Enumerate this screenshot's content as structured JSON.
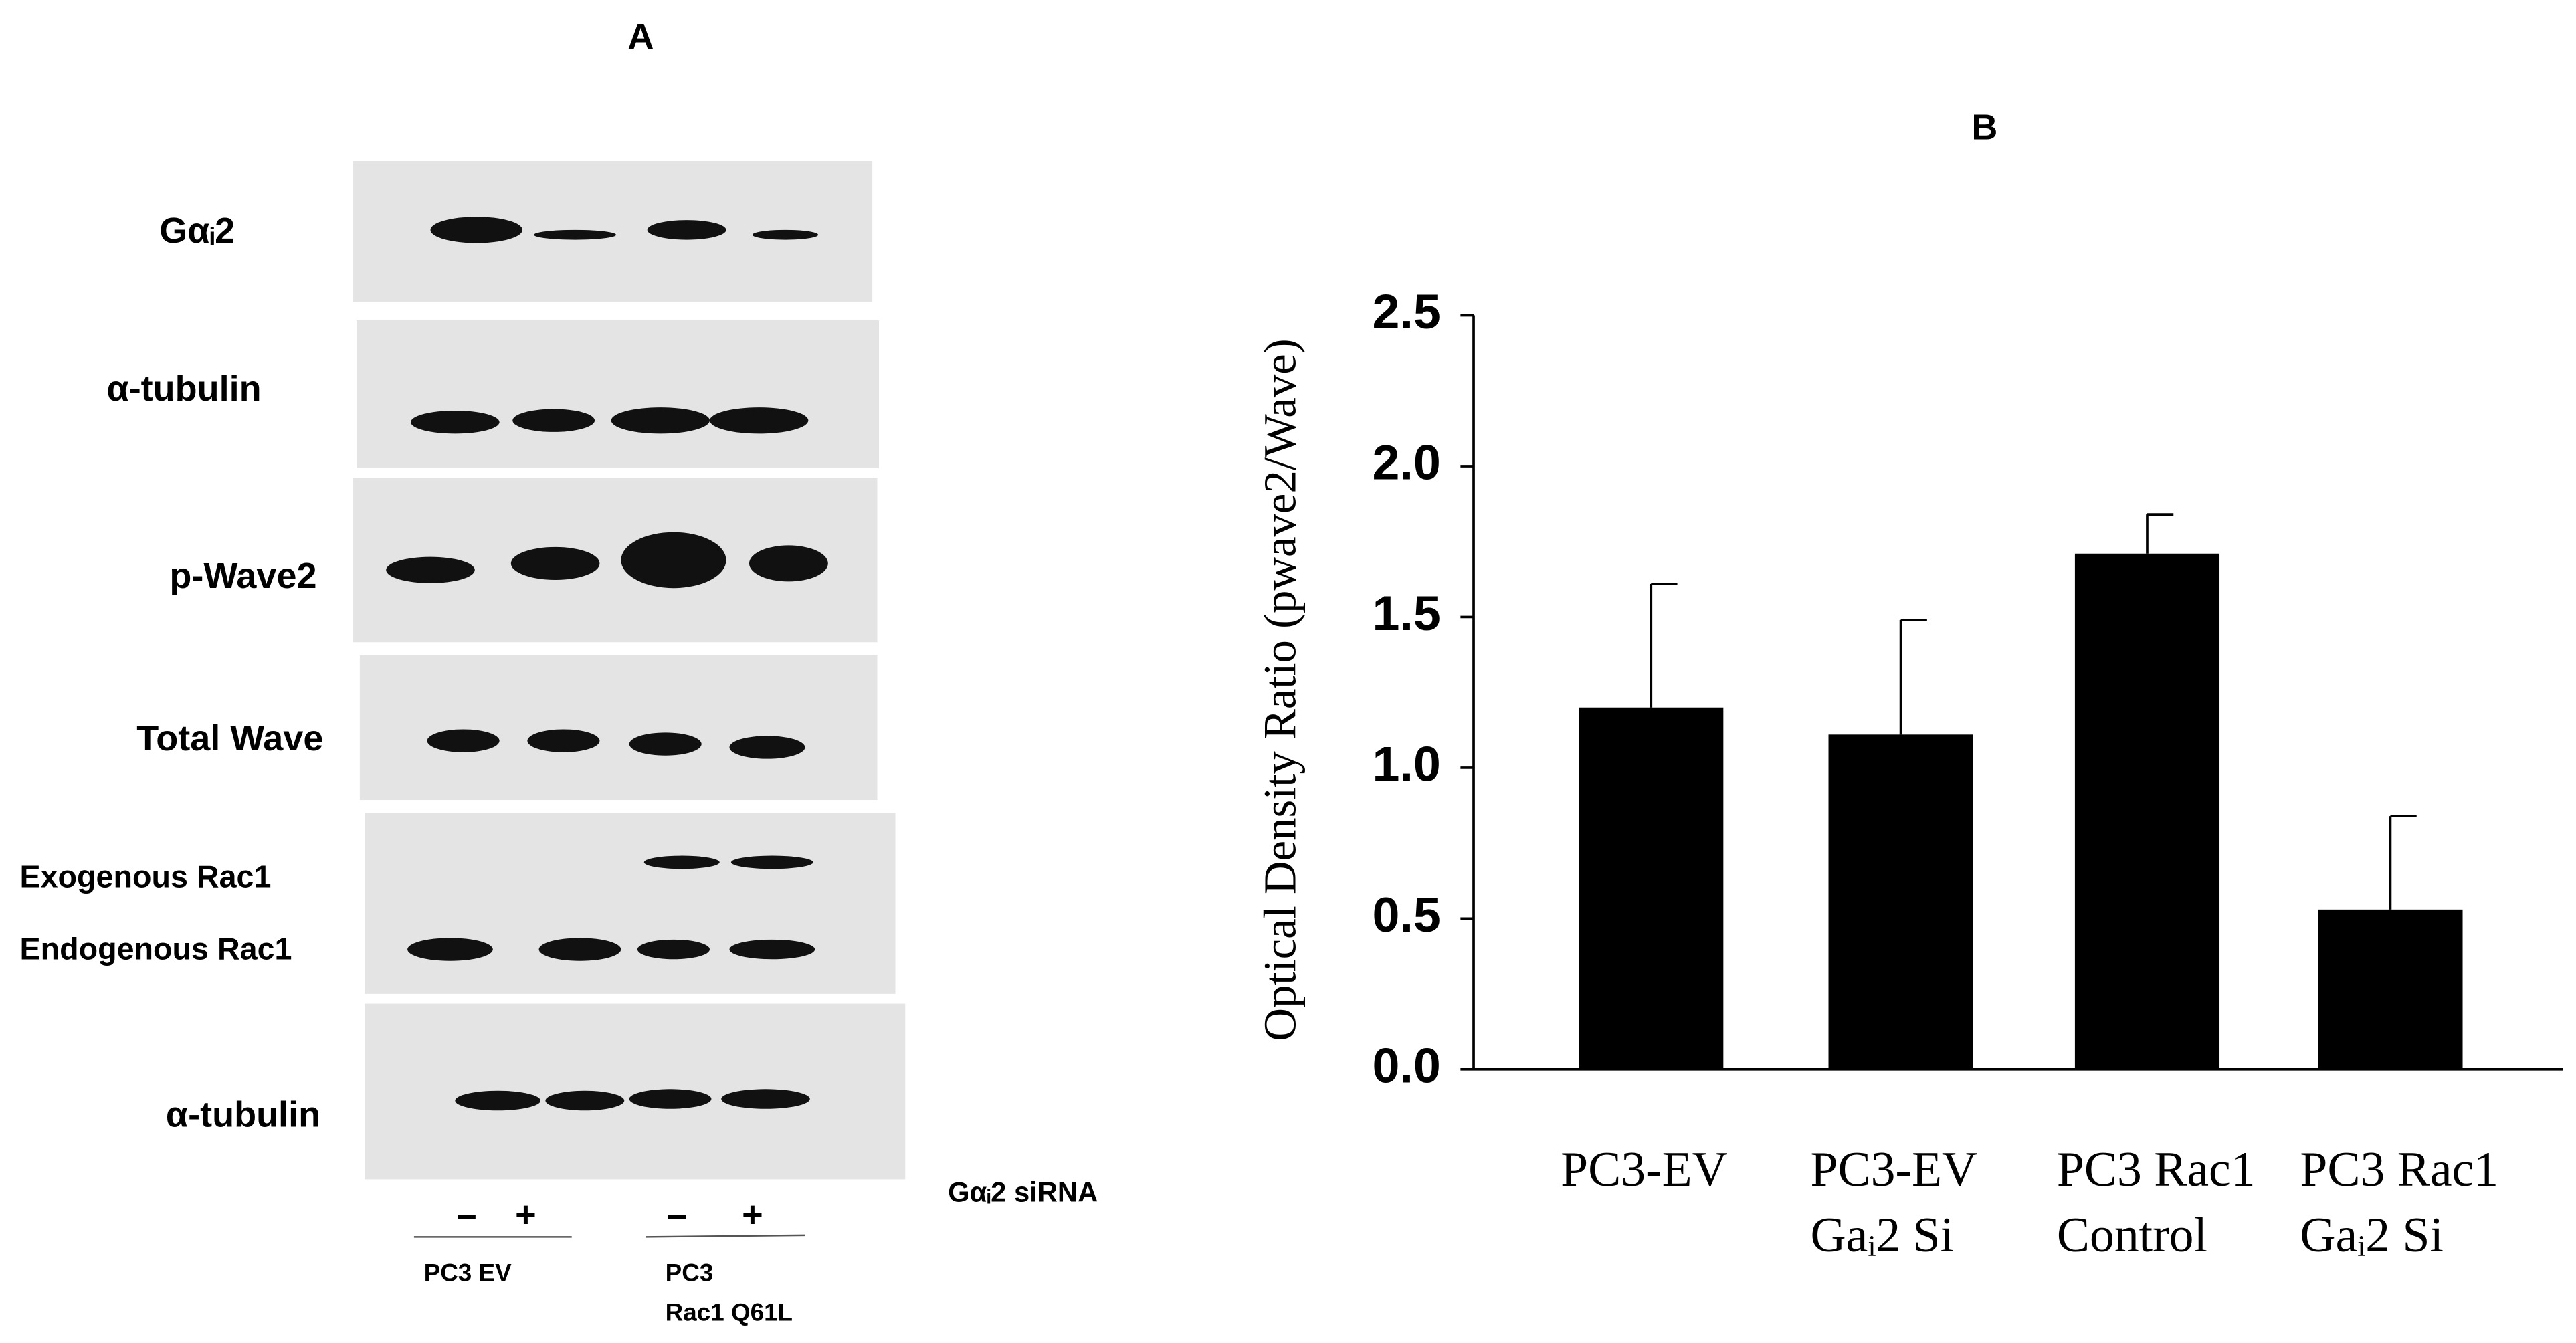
{
  "panel_a": {
    "title": "A",
    "rows": [
      "Gαᵢ2",
      "α-tubulin",
      "p-Wave2",
      "Total Wave",
      "Exogenous Rac1",
      "Endogenous Rac1",
      "α-tubulin"
    ],
    "treatment": "Gαᵢ2 siRNA",
    "lanes": [
      "–",
      "+",
      "–",
      "+"
    ],
    "groups": [
      [
        "PC3 EV"
      ],
      [
        "PC3",
        "Rac1 Q61L"
      ]
    ]
  },
  "chart_data": {
    "type": "bar",
    "title": "B",
    "y_label": "Optical Density Ratio (pwave2/Wave)",
    "categories": [
      [
        "PC3-EV"
      ],
      [
        "PC3-EV",
        "Gaᵢ2 Si"
      ],
      [
        "PC3 Rac1",
        "Control"
      ],
      [
        "PC3 Rac1",
        "Gaᵢ2 Si"
      ]
    ],
    "values": [
      1.2,
      1.11,
      1.71,
      0.53
    ],
    "errors": [
      0.41,
      0.38,
      0.13,
      0.31
    ],
    "color": "#000000",
    "ylim": [
      0,
      2.5
    ],
    "yticks": [
      {
        "value": 0,
        "label": "0.0"
      },
      0.5,
      {
        "value": 1,
        "label": "1.0"
      },
      1.5,
      {
        "value": 2,
        "label": "2.0"
      },
      2.5
    ]
  }
}
